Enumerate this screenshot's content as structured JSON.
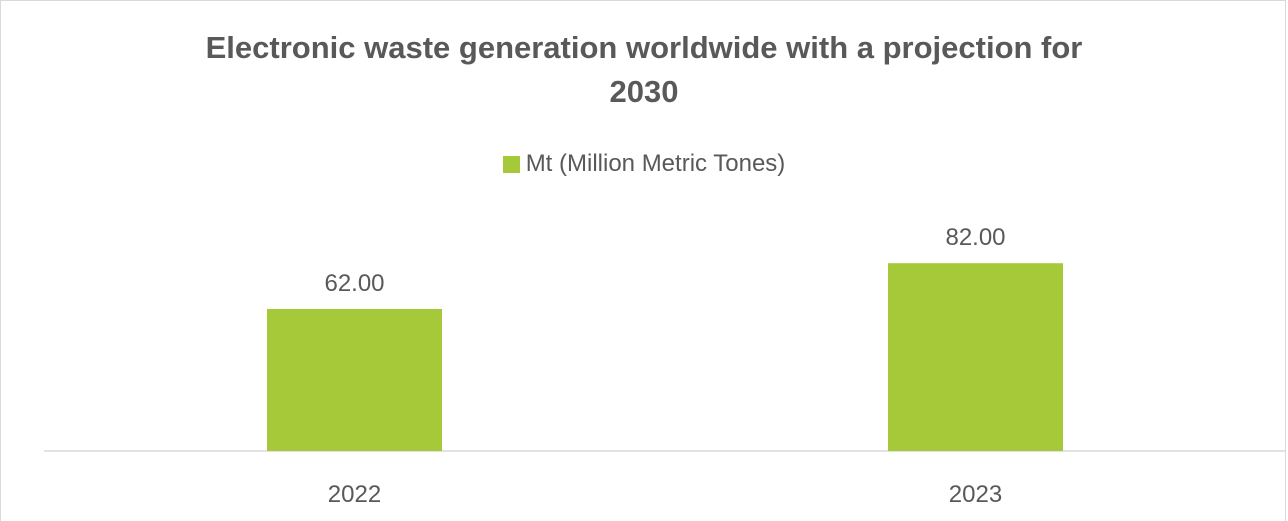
{
  "chart_data": {
    "type": "bar",
    "title_lines": [
      "Electronic waste generation worldwide with a projection for",
      "2030"
    ],
    "categories": [
      "2022",
      "2023"
    ],
    "series": [
      {
        "name": "Mt (Million Metric Tones)",
        "values": [
          62.0,
          82.0
        ],
        "labels": [
          "62.00",
          "82.00"
        ],
        "color": "#a5c938"
      }
    ],
    "legend_position": "top",
    "grid": false,
    "ylim": [
      0,
      120
    ]
  },
  "colors": {
    "bar": "#a5c938",
    "axis": "#d9d9d9",
    "text": "#595959"
  }
}
